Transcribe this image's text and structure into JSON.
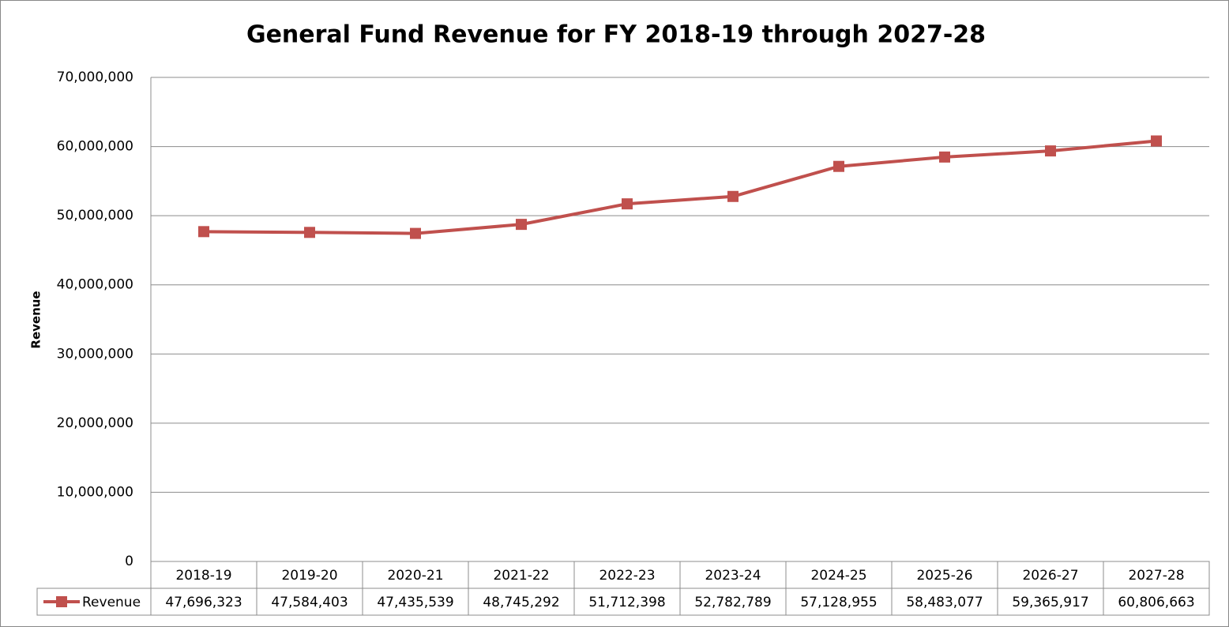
{
  "chart_data": {
    "type": "line",
    "title": "General Fund Revenue for FY 2018-19 through 2027-28",
    "y_label": "Revenue",
    "categories": [
      "2018-19",
      "2019-20",
      "2020-21",
      "2021-22",
      "2022-23",
      "2023-24",
      "2024-25",
      "2025-26",
      "2026-27",
      "2027-28"
    ],
    "series": [
      {
        "name": "Revenue",
        "color": "#c0504d",
        "values": [
          47696323,
          47584403,
          47435539,
          48745292,
          51712398,
          52782789,
          57128955,
          58483077,
          59365917,
          60806663
        ],
        "value_labels": [
          "47,696,323",
          "47,584,403",
          "47,435,539",
          "48,745,292",
          "51,712,398",
          "52,782,789",
          "57,128,955",
          "58,483,077",
          "59,365,917",
          "60,806,663"
        ]
      }
    ],
    "ylim": [
      0,
      70000000
    ],
    "yticks": [
      0,
      {
        "value": 10000000,
        "label": "10,000,000"
      },
      {
        "value": 20000000,
        "label": "20,000,000"
      },
      {
        "value": 30000000,
        "label": "30,000,000"
      },
      {
        "value": 40000000,
        "label": "40,000,000"
      },
      {
        "value": 50000000,
        "label": "50,000,000"
      },
      {
        "value": 60000000,
        "label": "60,000,000"
      },
      {
        "value": 70000000,
        "label": "70,000,000"
      }
    ],
    "grid": true
  }
}
